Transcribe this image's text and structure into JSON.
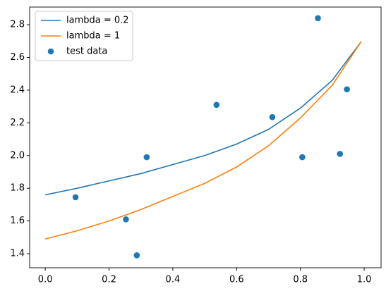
{
  "chart_data": {
    "type": "line",
    "series": [
      {
        "name": "lambda = 0.2",
        "type": "line",
        "color": "#1f77b4",
        "x": [
          0,
          0.1,
          0.2,
          0.3,
          0.4,
          0.5,
          0.6,
          0.7,
          0.8,
          0.9,
          0.99
        ],
        "values": [
          1.76,
          1.8,
          1.845,
          1.89,
          1.945,
          2.0,
          2.07,
          2.16,
          2.29,
          2.46,
          2.695
        ]
      },
      {
        "name": "lambda = 1",
        "type": "line",
        "color": "#ff7f0e",
        "x": [
          0,
          0.1,
          0.2,
          0.3,
          0.4,
          0.5,
          0.6,
          0.7,
          0.8,
          0.9,
          0.99
        ],
        "values": [
          1.49,
          1.54,
          1.6,
          1.67,
          1.75,
          1.83,
          1.93,
          2.06,
          2.23,
          2.43,
          2.695
        ]
      },
      {
        "name": "test data",
        "type": "scatter",
        "color": "#1f77b4",
        "x": [
          0.095,
          0.253,
          0.287,
          0.318,
          0.537,
          0.712,
          0.806,
          0.855,
          0.924,
          0.946
        ],
        "values": [
          1.745,
          1.61,
          1.39,
          1.99,
          2.31,
          2.235,
          1.99,
          2.84,
          2.01,
          2.405
        ]
      }
    ],
    "xlim": [
      -0.049,
      1.053
    ],
    "ylim": [
      1.314,
      2.908
    ],
    "xticks": [
      {
        "value": 0,
        "label": "0.0"
      },
      0.2,
      0.4,
      0.6,
      0.8,
      {
        "value": 1,
        "label": "1.0"
      }
    ],
    "yticks": [
      1.4,
      1.6,
      1.8,
      {
        "value": 2,
        "label": "2.0"
      },
      2.2,
      2.4,
      2.6,
      2.8
    ],
    "legend": "upper left"
  }
}
